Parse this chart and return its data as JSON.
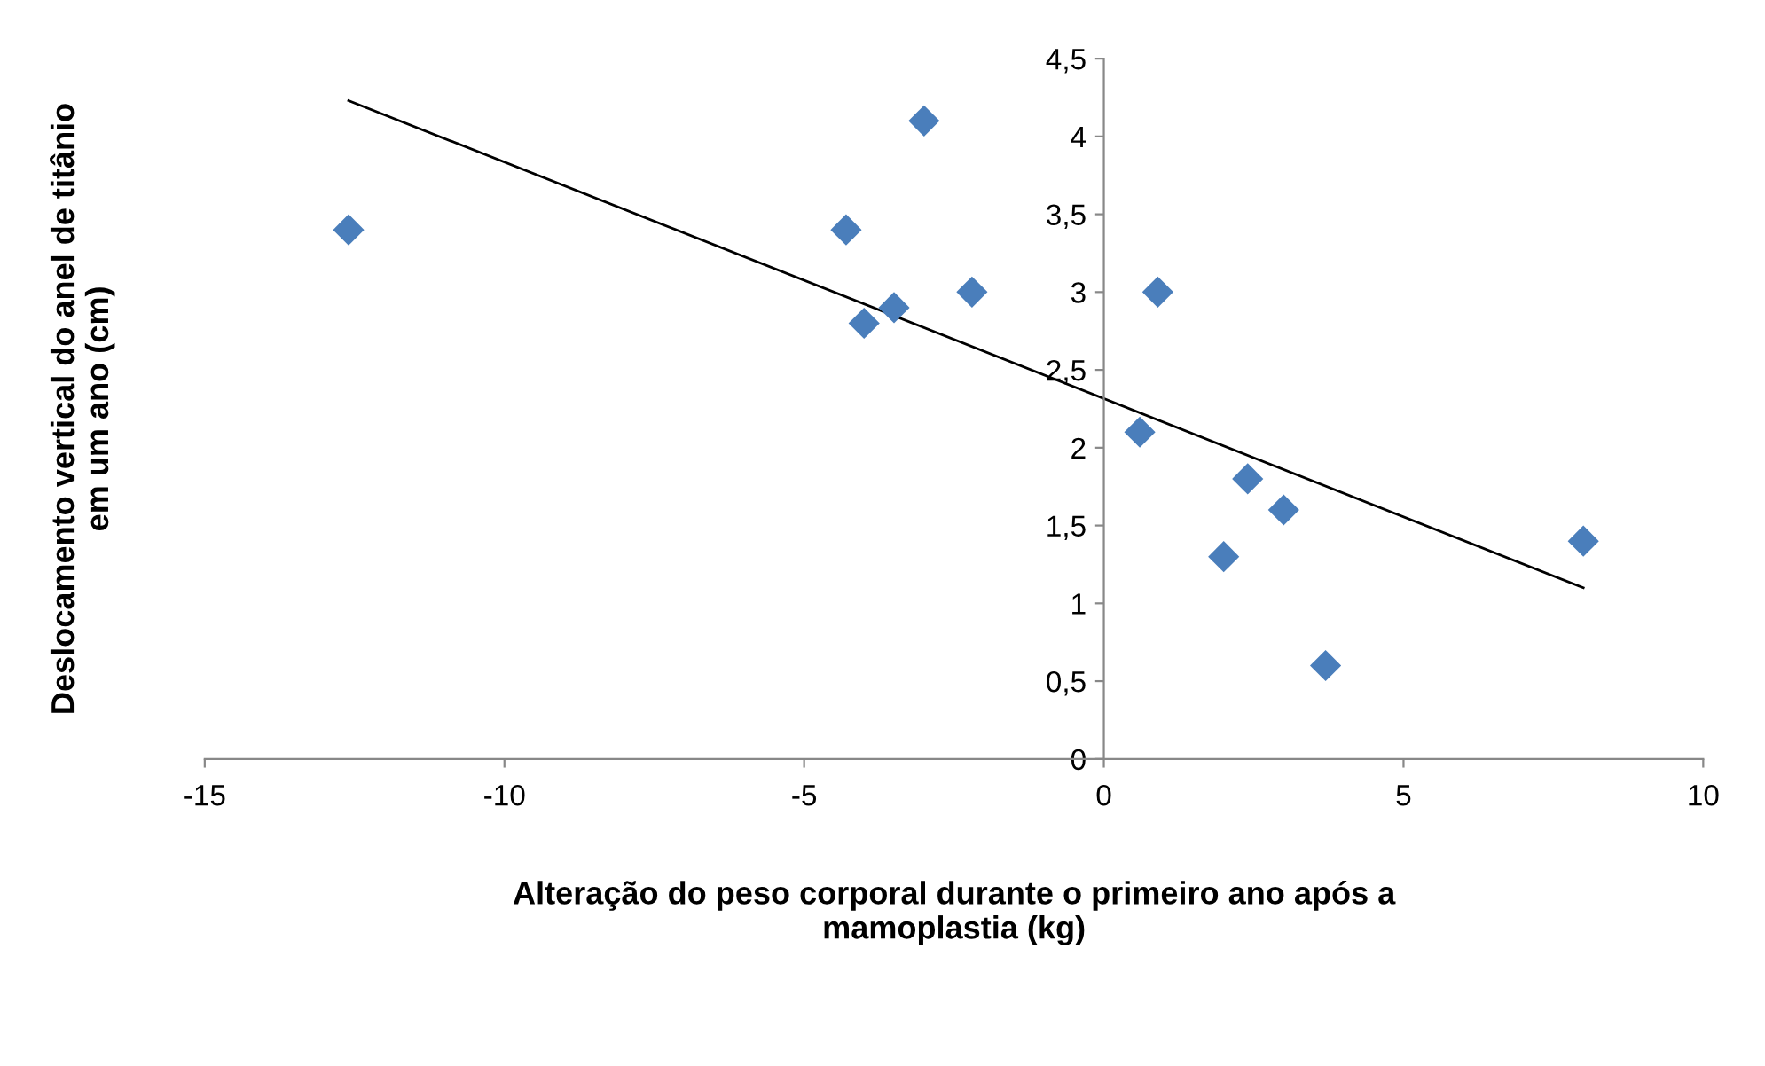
{
  "chart_data": {
    "type": "scatter",
    "xlabel": "Alteração do peso corporal durante o primeiro ano após a\nmamoplastia (kg)",
    "ylabel": "Deslocamento vertical do anel de titânio\nem um ano (cm)",
    "series": [
      {
        "color": "#4a7ebb",
        "marker": "diamond",
        "x": [
          -12.6,
          -4.3,
          -3.0,
          -4.0,
          -3.5,
          -2.2,
          0.9,
          0.6,
          2.4,
          3.0,
          2.0,
          3.7,
          8.0
        ],
        "values": [
          3.4,
          3.4,
          4.1,
          2.8,
          2.9,
          3.0,
          3.0,
          2.1,
          1.8,
          1.6,
          1.3,
          0.6,
          1.4
        ]
      },
      {
        "type": "line",
        "color": "#000000",
        "marker": "none",
        "x": [
          -12.6,
          8.0
        ],
        "values": [
          4.23,
          1.1
        ]
      }
    ],
    "xlim": [
      -15,
      10
    ],
    "xticks": [
      -15,
      -10,
      -5,
      0,
      5,
      10
    ],
    "ylim": [
      0,
      4.5
    ],
    "yticks": [
      0,
      {
        "value": 0.5,
        "label": "0,5"
      },
      1,
      {
        "value": 1.5,
        "label": "1,5"
      },
      2,
      {
        "value": 2.5,
        "label": "2,5"
      },
      3,
      {
        "value": 3.5,
        "label": "3,5"
      },
      4,
      {
        "value": 4.5,
        "label": "4,5"
      }
    ],
    "grid": false,
    "legend": false
  }
}
